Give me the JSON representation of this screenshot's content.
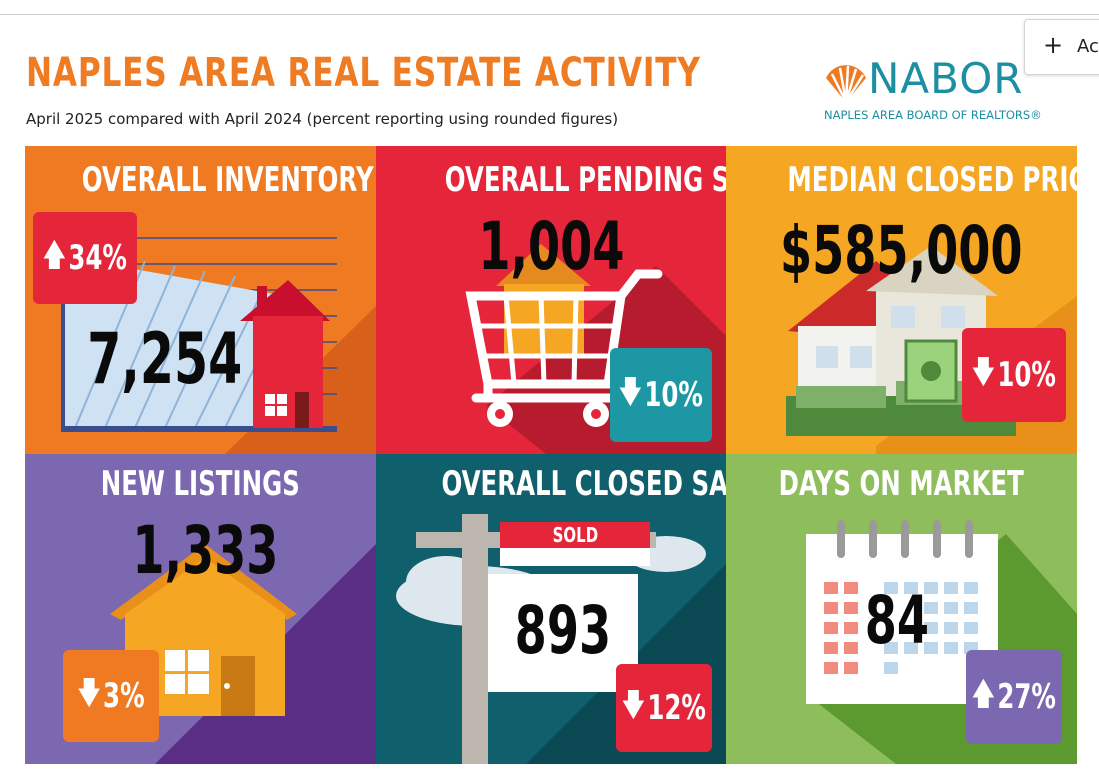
{
  "toolbar": {
    "add_label": "Ac",
    "add_icon": "plus-icon"
  },
  "header": {
    "title": "NAPLES AREA REAL ESTATE ACTIVITY",
    "subtitle": "April 2025 compared with April 2024 (percent reporting using rounded figures)"
  },
  "logo": {
    "brand": "NABOR",
    "tagline": "NAPLES AREA BOARD OF REALTORS®",
    "icon": "shell-logo-icon"
  },
  "colors": {
    "orange": "#f07a22",
    "red": "#e4253a",
    "amber": "#f5a623",
    "purple": "#7b68b0",
    "teal": "#0f5f6c",
    "green": "#8dbe5b"
  },
  "tiles": [
    {
      "title": "OVERALL INVENTORY",
      "value": "7,254",
      "change": "34%",
      "direction": "up",
      "badge_color": "#e4253a",
      "icon": "house-chart-icon"
    },
    {
      "title": "OVERALL PENDING SALES",
      "value": "1,004",
      "change": "10%",
      "direction": "down",
      "badge_color": "#1d97a3",
      "icon": "shopping-cart-house-icon"
    },
    {
      "title": "MEDIAN CLOSED PRICE",
      "value": "$585,000",
      "change": "10%",
      "direction": "down",
      "badge_color": "#e4253a",
      "icon": "house-money-icon"
    },
    {
      "title": "NEW LISTINGS",
      "value": "1,333",
      "change": "3%",
      "direction": "down",
      "badge_color": "#f07a22",
      "icon": "house-icon"
    },
    {
      "title": "OVERALL CLOSED SALES",
      "value": "893",
      "change": "12%",
      "direction": "down",
      "badge_color": "#e4253a",
      "icon": "sold-sign-icon",
      "sign_text": "SOLD"
    },
    {
      "title": "DAYS ON MARKET",
      "value": "84",
      "change": "27%",
      "direction": "up",
      "badge_color": "#7b68b0",
      "icon": "calendar-icon"
    }
  ]
}
